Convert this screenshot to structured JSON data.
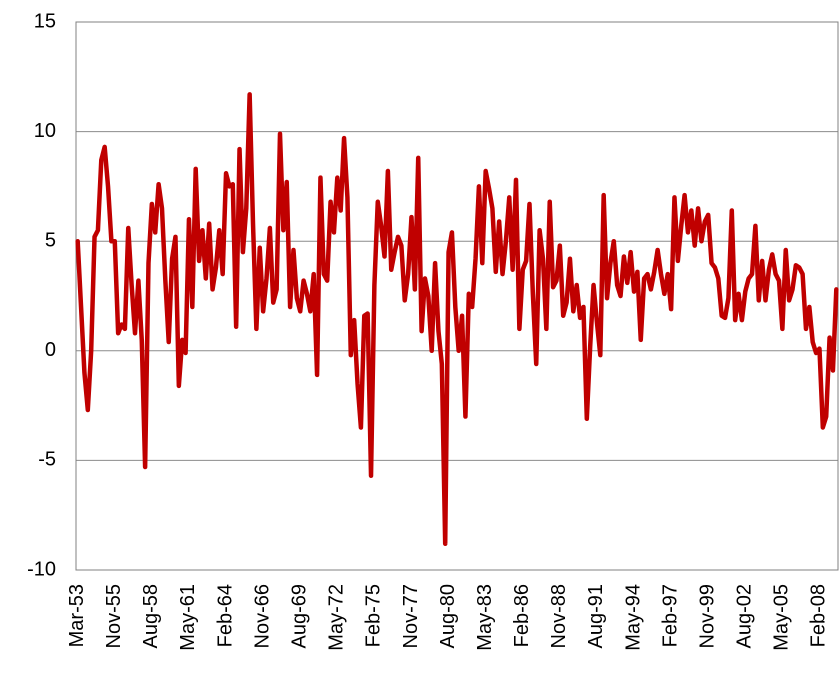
{
  "chart_data": {
    "type": "line",
    "categories": [
      "Mar-53",
      null,
      null,
      null,
      null,
      null,
      null,
      null,
      null,
      null,
      null,
      "Nov-55",
      null,
      null,
      null,
      null,
      null,
      null,
      null,
      null,
      null,
      null,
      "Aug-58",
      null,
      null,
      null,
      null,
      null,
      null,
      null,
      null,
      null,
      null,
      "May-61",
      null,
      null,
      null,
      null,
      null,
      null,
      null,
      null,
      null,
      null,
      "Feb-64",
      null,
      null,
      null,
      null,
      null,
      null,
      null,
      null,
      null,
      null,
      "Nov-66",
      null,
      null,
      null,
      null,
      null,
      null,
      null,
      null,
      null,
      null,
      "Aug-69",
      null,
      null,
      null,
      null,
      null,
      null,
      null,
      null,
      null,
      null,
      "May-72",
      null,
      null,
      null,
      null,
      null,
      null,
      null,
      null,
      null,
      null,
      "Feb-75",
      null,
      null,
      null,
      null,
      null,
      null,
      null,
      null,
      null,
      null,
      "Nov-77",
      null,
      null,
      null,
      null,
      null,
      null,
      null,
      null,
      null,
      null,
      "Aug-80",
      null,
      null,
      null,
      null,
      null,
      null,
      null,
      null,
      null,
      null,
      "May-83",
      null,
      null,
      null,
      null,
      null,
      null,
      null,
      null,
      null,
      null,
      "Feb-86",
      null,
      null,
      null,
      null,
      null,
      null,
      null,
      null,
      null,
      null,
      "Nov-88",
      null,
      null,
      null,
      null,
      null,
      null,
      null,
      null,
      null,
      null,
      "Aug-91",
      null,
      null,
      null,
      null,
      null,
      null,
      null,
      null,
      null,
      null,
      "May-94",
      null,
      null,
      null,
      null,
      null,
      null,
      null,
      null,
      null,
      null,
      "Feb-97",
      null,
      null,
      null,
      null,
      null,
      null,
      null,
      null,
      null,
      null,
      "Nov-99",
      null,
      null,
      null,
      null,
      null,
      null,
      null,
      null,
      null,
      null,
      "Aug-02",
      null,
      null,
      null,
      null,
      null,
      null,
      null,
      null,
      null,
      null,
      "May-05",
      null,
      null,
      null,
      null,
      null,
      null,
      null,
      null,
      null,
      null,
      "Feb-08",
      null,
      null,
      null,
      null,
      null
    ],
    "values": [
      5,
      2,
      -1,
      -2.7,
      0,
      5.2,
      5.5,
      8.7,
      9.3,
      7.5,
      5,
      5,
      0.8,
      1.2,
      1.0,
      5.6,
      3,
      0.8,
      3.2,
      0.5,
      -5.3,
      4,
      6.7,
      5.4,
      7.6,
      6.5,
      3.2,
      0.4,
      4.2,
      5.2,
      -1.6,
      0.5,
      -0.1,
      6,
      2,
      8.3,
      4.1,
      5.5,
      3.3,
      5.8,
      2.8,
      3.8,
      5.5,
      3.5,
      8.1,
      7.5,
      7.6,
      1.1,
      9.2,
      4.5,
      6.5,
      11.7,
      5.8,
      1,
      4.7,
      1.8,
      3.3,
      5.6,
      2.2,
      2.8,
      9.9,
      5.5,
      7.7,
      2,
      4.6,
      2.4,
      1.8,
      3.2,
      2.6,
      1.8,
      3.5,
      -1.1,
      7.9,
      3.5,
      3.2,
      6.8,
      5.4,
      7.9,
      6.4,
      9.7,
      7,
      -0.2,
      1.4,
      -1.5,
      -3.5,
      1.6,
      1.7,
      -5.7,
      3,
      6.8,
      5.7,
      4.3,
      8.2,
      3.7,
      4.5,
      5.2,
      4.8,
      2.3,
      3.5,
      6.1,
      2.8,
      8.8,
      0.9,
      3.3,
      2.5,
      0,
      4,
      0.9,
      -0.6,
      -8.8,
      4.5,
      5.4,
      2,
      0,
      1.6,
      -3,
      2.6,
      2,
      4.2,
      7.5,
      4,
      8.2,
      7.4,
      6.5,
      3.6,
      5.9,
      3.5,
      5,
      7,
      3.7,
      7.8,
      1,
      3.7,
      4.1,
      6.7,
      2.6,
      -0.6,
      5.5,
      4.2,
      1,
      6.8,
      2.9,
      3.2,
      4.8,
      1.6,
      2.2,
      4.2,
      1.8,
      3,
      1.5,
      2,
      -3.1,
      0.2,
      3,
      1.3,
      -0.2,
      7.1,
      2.4,
      4,
      5,
      3,
      2.5,
      4.3,
      3.1,
      4.5,
      2.7,
      3.6,
      0.5,
      3.3,
      3.5,
      2.8,
      3.6,
      4.6,
      3.5,
      2.6,
      3.5,
      1.9,
      7,
      4.1,
      5.7,
      7.1,
      5.4,
      6.4,
      4.8,
      6.5,
      5,
      5.9,
      6.2,
      4,
      3.8,
      3.3,
      1.6,
      1.5,
      2.4,
      6.4,
      1.4,
      2.6,
      1.4,
      2.7,
      3.3,
      3.5,
      5.7,
      2.3,
      4.1,
      2.3,
      3.7,
      4.4,
      3.5,
      3.2,
      1,
      4.6,
      2.3,
      2.8,
      3.9,
      3.8,
      3.5,
      1,
      2,
      0.4,
      -0.1,
      0.1,
      -3.5,
      -3,
      0.6,
      -0.9,
      2.8
    ],
    "color": "#c00000",
    "ylim": [
      -10,
      15
    ],
    "yticks": [
      -10,
      -5,
      0,
      5,
      10,
      15
    ],
    "grid": true
  }
}
